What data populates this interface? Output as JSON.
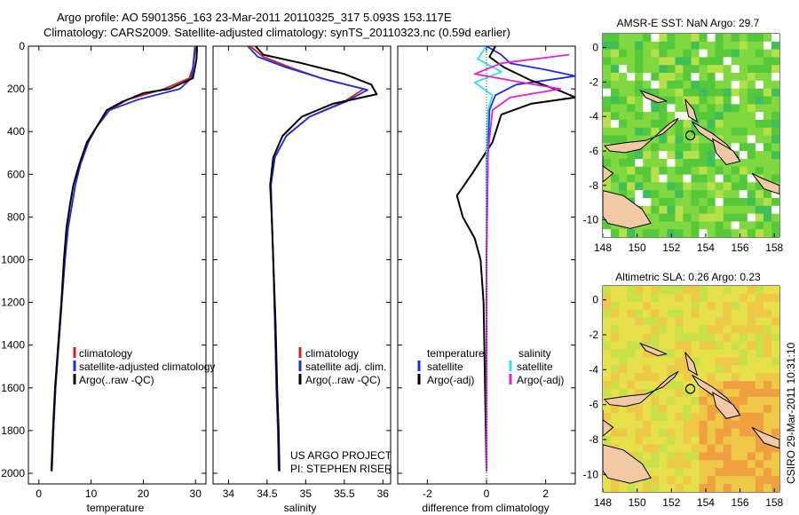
{
  "header": {
    "line1": "Argo profile: AO 5901356_163 23-Mar-2011 20110325_317 5.093S 153.117E",
    "line2": "Climatology: CARS2009. Satellite-adjusted climatology: synTS_20110323.nc (0.59d earlier)"
  },
  "side_note": "CSIRO 29-Mar-2011 10:31:10",
  "project_note": {
    "line1": "US ARGO PROJECT",
    "line2": "PI: STEPHEN RISER"
  },
  "colors": {
    "climatology": "#d42020",
    "satellite": "#1a2ee0",
    "argo": "#000000",
    "sat_salt": "#2ee0e8",
    "argo_salt": "#e020e0",
    "land": "#f2c9a5",
    "ocean": "#98d83c",
    "marker": "#000000"
  },
  "chart_data": [
    {
      "type": "line",
      "xlabel": "temperature",
      "ylabel": "",
      "xlim": [
        -2,
        32
      ],
      "ylim": [
        0,
        2050
      ],
      "y_inverted": true,
      "xticks": [
        "0",
        "10",
        "20",
        "30"
      ],
      "yticks": [
        "0",
        "200",
        "400",
        "600",
        "800",
        "1000",
        "1200",
        "1400",
        "1600",
        "1800",
        "2000"
      ],
      "legend": [
        "climatology",
        "satellite-adjusted climatology",
        "Argo(..raw -QC)"
      ],
      "series": [
        {
          "name": "climatology",
          "color_key": "climatology",
          "points": [
            [
              30,
              0
            ],
            [
              29.8,
              50
            ],
            [
              29.5,
              100
            ],
            [
              28.8,
              150
            ],
            [
              24,
              200
            ],
            [
              17,
              250
            ],
            [
              13.5,
              300
            ],
            [
              11,
              380
            ],
            [
              9.5,
              450
            ],
            [
              8,
              550
            ],
            [
              7,
              650
            ],
            [
              6.3,
              750
            ],
            [
              5.6,
              850
            ],
            [
              5,
              1000
            ],
            [
              4.4,
              1200
            ],
            [
              3.8,
              1400
            ],
            [
              3.2,
              1600
            ],
            [
              2.8,
              1800
            ],
            [
              2.5,
              1990
            ]
          ]
        },
        {
          "name": "satellite-adjusted climatology",
          "color_key": "satellite",
          "points": [
            [
              29.9,
              0
            ],
            [
              29.7,
              50
            ],
            [
              29.5,
              100
            ],
            [
              29.2,
              150
            ],
            [
              27,
              200
            ],
            [
              19,
              250
            ],
            [
              13.5,
              300
            ],
            [
              11,
              380
            ],
            [
              9.5,
              450
            ],
            [
              8,
              550
            ],
            [
              7,
              650
            ],
            [
              6.3,
              750
            ],
            [
              5.6,
              850
            ],
            [
              5,
              1000
            ],
            [
              4.4,
              1200
            ],
            [
              3.8,
              1400
            ],
            [
              3.2,
              1600
            ],
            [
              2.8,
              1800
            ],
            [
              2.5,
              1990
            ]
          ]
        },
        {
          "name": "Argo(..raw -QC)",
          "color_key": "argo",
          "points": [
            [
              30.3,
              0
            ],
            [
              30.2,
              60
            ],
            [
              29.5,
              150
            ],
            [
              25,
              200
            ],
            [
              20,
              220
            ],
            [
              16,
              260
            ],
            [
              13,
              300
            ],
            [
              11,
              380
            ],
            [
              9.2,
              450
            ],
            [
              7.8,
              550
            ],
            [
              6.6,
              650
            ],
            [
              5.9,
              750
            ],
            [
              5.3,
              850
            ],
            [
              4.8,
              1000
            ],
            [
              4.3,
              1200
            ],
            [
              3.7,
              1400
            ],
            [
              3.1,
              1600
            ],
            [
              2.7,
              1800
            ],
            [
              2.4,
              1990
            ]
          ]
        }
      ]
    },
    {
      "type": "line",
      "xlabel": "salinity",
      "ylabel": "",
      "xlim": [
        33.8,
        36.1
      ],
      "ylim": [
        0,
        2050
      ],
      "y_inverted": true,
      "xticks": [
        "34",
        "34.5",
        "35",
        "35.5",
        "36"
      ],
      "legend": [
        "climatology",
        "satellite adj. clim.",
        "Argo(..raw -QC)"
      ],
      "series": [
        {
          "name": "climatology",
          "color_key": "climatology",
          "points": [
            [
              34.28,
              0
            ],
            [
              34.45,
              50
            ],
            [
              34.8,
              100
            ],
            [
              35.2,
              150
            ],
            [
              35.75,
              200
            ],
            [
              35.5,
              260
            ],
            [
              35.05,
              330
            ],
            [
              34.75,
              420
            ],
            [
              34.6,
              520
            ],
            [
              34.55,
              650
            ],
            [
              34.56,
              800
            ],
            [
              34.58,
              1000
            ],
            [
              34.6,
              1300
            ],
            [
              34.62,
              1600
            ],
            [
              34.64,
              1800
            ],
            [
              34.65,
              1990
            ]
          ]
        },
        {
          "name": "satellite adj. clim.",
          "color_key": "satellite",
          "points": [
            [
              34.25,
              0
            ],
            [
              34.38,
              50
            ],
            [
              34.75,
              100
            ],
            [
              35.3,
              160
            ],
            [
              35.8,
              205
            ],
            [
              35.52,
              260
            ],
            [
              35.05,
              330
            ],
            [
              34.75,
              420
            ],
            [
              34.6,
              520
            ],
            [
              34.55,
              650
            ],
            [
              34.56,
              800
            ],
            [
              34.58,
              1000
            ],
            [
              34.6,
              1300
            ],
            [
              34.62,
              1600
            ],
            [
              34.64,
              1800
            ],
            [
              34.65,
              1990
            ]
          ]
        },
        {
          "name": "Argo(..raw -QC)",
          "color_key": "argo",
          "points": [
            [
              34.35,
              0
            ],
            [
              34.45,
              40
            ],
            [
              34.95,
              80
            ],
            [
              35.5,
              130
            ],
            [
              35.85,
              180
            ],
            [
              35.92,
              225
            ],
            [
              35.35,
              270
            ],
            [
              34.95,
              330
            ],
            [
              34.7,
              420
            ],
            [
              34.58,
              520
            ],
            [
              34.54,
              650
            ],
            [
              34.56,
              800
            ],
            [
              34.58,
              1000
            ],
            [
              34.61,
              1300
            ],
            [
              34.63,
              1600
            ],
            [
              34.65,
              1800
            ],
            [
              34.66,
              1990
            ]
          ]
        }
      ]
    },
    {
      "type": "line",
      "xlabel": "difference from climatology",
      "ylabel": "",
      "xlim": [
        -3,
        3
      ],
      "ylim": [
        0,
        2050
      ],
      "y_inverted": true,
      "xticks": [
        "-2",
        "0",
        "2"
      ],
      "legend_titles": [
        "temperature",
        "salinity"
      ],
      "legend_left": [
        "satellite",
        "Argo(-adj)"
      ],
      "legend_right": [
        "satellite",
        "Argo(-adj)"
      ],
      "series": [
        {
          "name": "temperature satellite",
          "color_key": "satellite",
          "points": [
            [
              0,
              0
            ],
            [
              0.5,
              40
            ],
            [
              0.8,
              80
            ],
            [
              2.0,
              110
            ],
            [
              3.0,
              140
            ],
            [
              1.0,
              180
            ],
            [
              0.3,
              230
            ],
            [
              0.1,
              300
            ],
            [
              0.05,
              500
            ],
            [
              0,
              1000
            ],
            [
              0,
              1990
            ]
          ]
        },
        {
          "name": "temperature Argo(-adj)",
          "color_key": "argo",
          "points": [
            [
              0.3,
              0
            ],
            [
              0.1,
              50
            ],
            [
              0.6,
              100
            ],
            [
              1.5,
              160
            ],
            [
              2.5,
              210
            ],
            [
              3.0,
              240
            ],
            [
              1.5,
              270
            ],
            [
              0.5,
              320
            ],
            [
              0.2,
              450
            ],
            [
              -0.5,
              600
            ],
            [
              -1.0,
              700
            ],
            [
              -0.8,
              800
            ],
            [
              -0.4,
              900
            ],
            [
              -0.2,
              1000
            ],
            [
              -0.1,
              1200
            ],
            [
              0,
              1990
            ]
          ]
        },
        {
          "name": "salinity satellite",
          "color_key": "sat_salt",
          "points": [
            [
              0,
              0
            ],
            [
              -0.3,
              60
            ],
            [
              0.5,
              120
            ],
            [
              -0.4,
              170
            ],
            [
              0.2,
              230
            ],
            [
              0.05,
              300
            ],
            [
              0,
              500
            ],
            [
              0,
              1990
            ]
          ]
        },
        {
          "name": "salinity Argo(-adj)",
          "color_key": "argo_salt",
          "points": [
            [
              2.8,
              40
            ],
            [
              0.5,
              80
            ],
            [
              -0.4,
              130
            ],
            [
              1.2,
              170
            ],
            [
              2.5,
              200
            ],
            [
              0.8,
              240
            ],
            [
              0.2,
              300
            ],
            [
              0.05,
              500
            ],
            [
              0,
              1000
            ],
            [
              0,
              1990
            ]
          ]
        }
      ]
    }
  ],
  "maps": [
    {
      "title": "AMSR-E SST: NaN Argo: 29.7",
      "xlim": [
        148,
        158.3
      ],
      "ylim": [
        -11,
        0.8
      ],
      "xticks": [
        "148",
        "150",
        "152",
        "154",
        "156",
        "158"
      ],
      "yticks": [
        "0",
        "-2",
        "-4",
        "-6",
        "-8",
        "-10"
      ],
      "marker": [
        153.1,
        -5.1
      ]
    },
    {
      "title": "Altimetric SLA: 0.26 Argo: 0.23",
      "xlim": [
        148,
        158.3
      ],
      "ylim": [
        -11,
        0.8
      ],
      "xticks": [
        "148",
        "150",
        "152",
        "154",
        "156",
        "158"
      ],
      "yticks": [
        "0",
        "-2",
        "-4",
        "-6",
        "-8",
        "-10"
      ],
      "marker": [
        153.1,
        -5.1
      ]
    }
  ]
}
